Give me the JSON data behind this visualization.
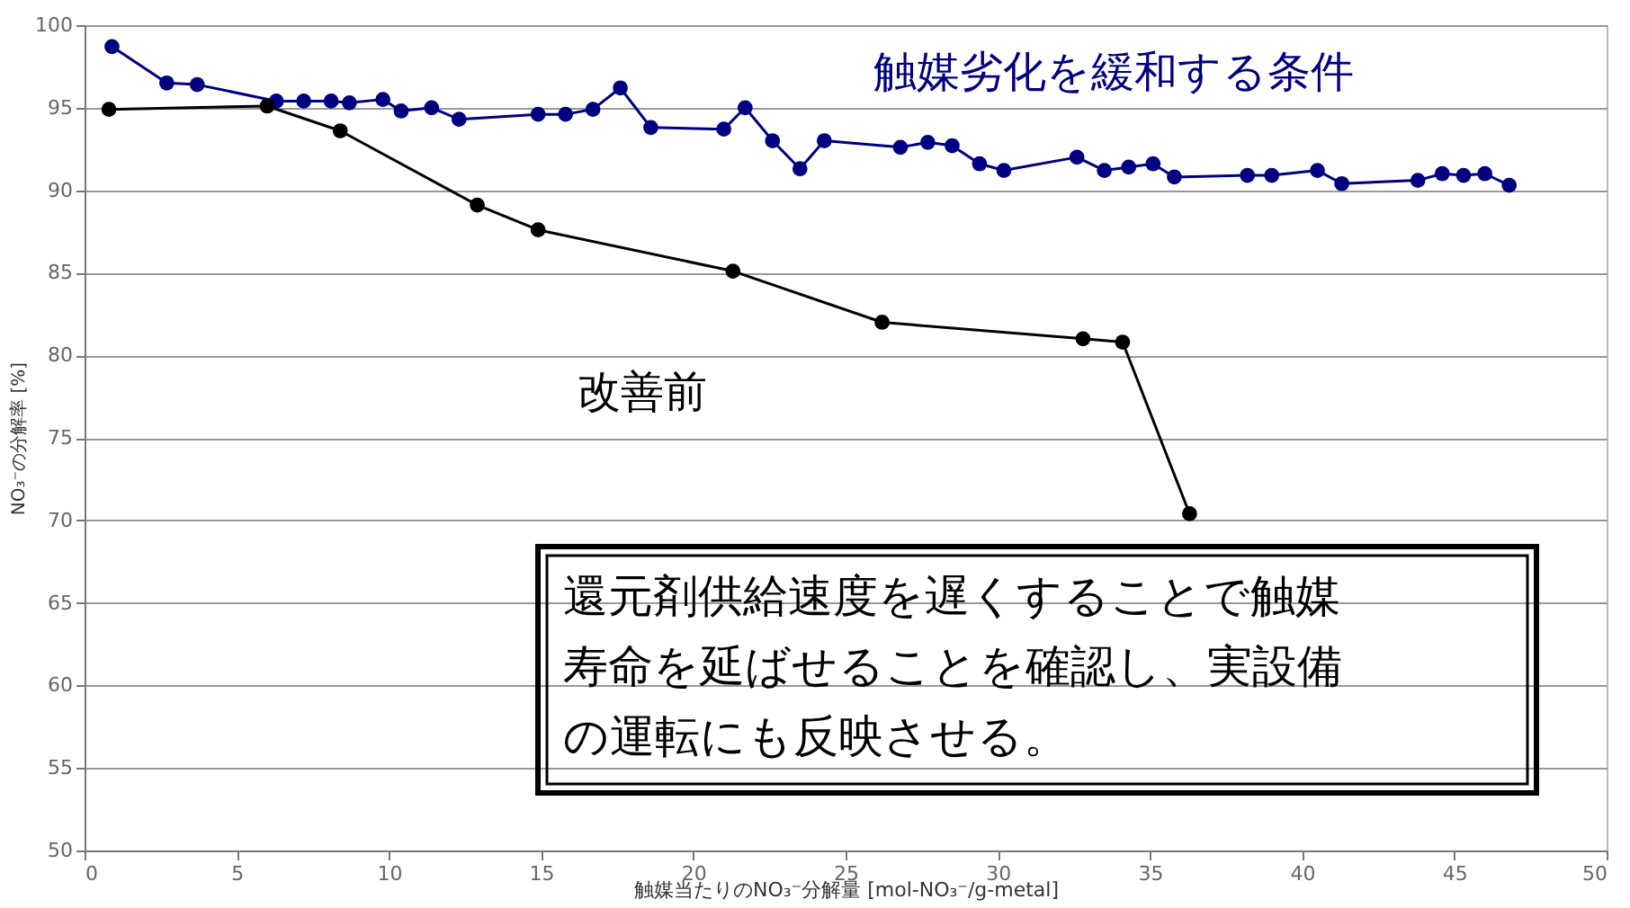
{
  "chart_data": {
    "type": "line",
    "xlabel": "触媒当たりのNO₃⁻分解量 [mol-NO₃⁻/g-metal]",
    "ylabel": "NO₃⁻の分解率 [%]",
    "xlim": [
      0,
      50
    ],
    "xticks": [
      0,
      5,
      10,
      15,
      20,
      25,
      30,
      35,
      40,
      45,
      50
    ],
    "ylim": [
      50,
      100
    ],
    "yticks": [
      50,
      55,
      60,
      65,
      70,
      75,
      80,
      85,
      90,
      95,
      100
    ],
    "grid": "y",
    "marker": "circle",
    "line_style": "solid",
    "legend": false,
    "series": [
      {
        "name": "触媒劣化を緩和する条件",
        "color": "#000080",
        "x": [
          0.9,
          2.7,
          3.7,
          6.3,
          7.2,
          8.1,
          8.7,
          9.8,
          10.4,
          11.4,
          12.3,
          14.9,
          15.8,
          16.7,
          17.6,
          18.6,
          21.0,
          21.7,
          22.6,
          23.5,
          24.3,
          26.8,
          27.7,
          28.5,
          29.4,
          30.2,
          32.6,
          33.5,
          34.3,
          35.1,
          35.8,
          38.2,
          39.0,
          40.5,
          41.3,
          43.8,
          44.6,
          45.3,
          46.0,
          46.8
        ],
        "values": [
          98.7,
          96.5,
          96.4,
          95.4,
          95.4,
          95.4,
          95.3,
          95.5,
          94.8,
          95.0,
          94.3,
          94.6,
          94.6,
          94.9,
          96.2,
          93.8,
          93.7,
          95.0,
          93.0,
          91.3,
          93.0,
          92.6,
          92.9,
          92.7,
          91.6,
          91.2,
          92.0,
          91.2,
          91.4,
          91.6,
          90.8,
          90.9,
          90.9,
          91.2,
          90.4,
          90.6,
          91.0,
          90.9,
          91.0,
          90.3
        ]
      },
      {
        "name": "改善前",
        "color": "#000000",
        "x": [
          0.8,
          6.0,
          8.4,
          12.9,
          14.9,
          21.3,
          26.2,
          32.8,
          34.1,
          36.3
        ],
        "values": [
          94.9,
          95.1,
          93.6,
          89.1,
          87.6,
          85.1,
          82.0,
          81.0,
          80.8,
          70.4
        ]
      }
    ],
    "annotations": [
      "還元剤供給速度を遅くすることで触媒寿命を延ばせることを確認し、実設備の運転にも反映させる。"
    ]
  }
}
